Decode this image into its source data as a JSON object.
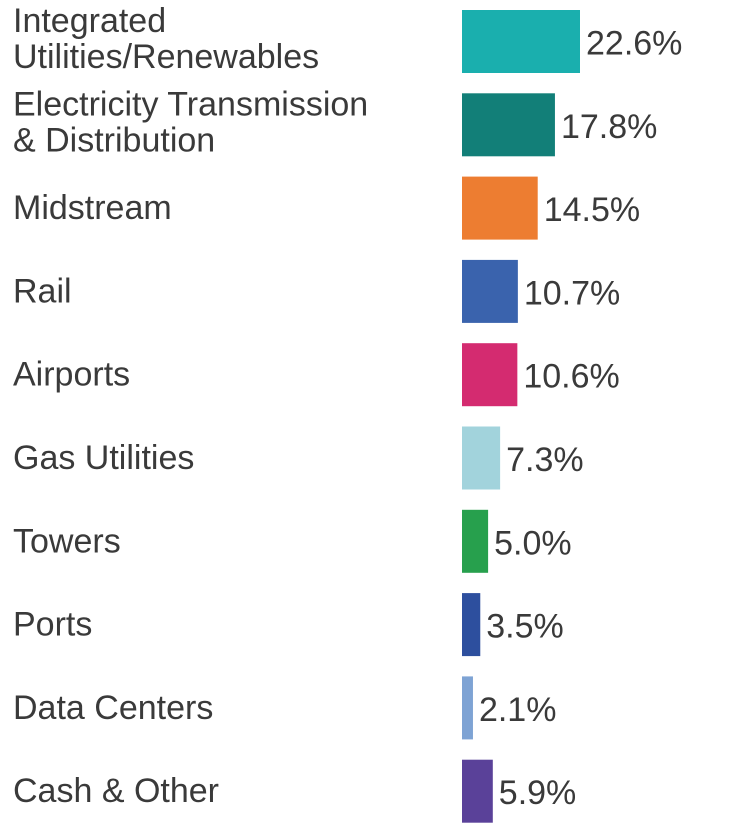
{
  "chart_data": {
    "type": "bar",
    "orientation": "horizontal",
    "categories": [
      "Integrated Utilities/Renewables",
      "Electricity Transmission & Distribution",
      "Midstream",
      "Rail",
      "Airports",
      "Gas Utilities",
      "Towers",
      "Ports",
      "Data Centers",
      "Cash & Other"
    ],
    "category_lines": [
      [
        "Integrated",
        "Utilities/Renewables"
      ],
      [
        "Electricity Transmission",
        "& Distribution"
      ],
      [
        "Midstream"
      ],
      [
        "Rail"
      ],
      [
        "Airports"
      ],
      [
        "Gas Utilities"
      ],
      [
        "Towers"
      ],
      [
        "Ports"
      ],
      [
        "Data Centers"
      ],
      [
        "Cash & Other"
      ]
    ],
    "values": [
      22.6,
      17.8,
      14.5,
      10.7,
      10.6,
      7.3,
      5.0,
      3.5,
      2.1,
      5.9
    ],
    "value_labels": [
      "22.6%",
      "17.8%",
      "14.5%",
      "10.7%",
      "10.6%",
      "7.3%",
      "5.0%",
      "3.5%",
      "2.1%",
      "5.9%"
    ],
    "colors": [
      "#1aafae",
      "#127f78",
      "#ed7d31",
      "#3a63ad",
      "#d42b70",
      "#a2d3dc",
      "#27a04d",
      "#2d4f9e",
      "#7ea3d4",
      "#5a4199"
    ],
    "grid": false,
    "legend": "none"
  }
}
